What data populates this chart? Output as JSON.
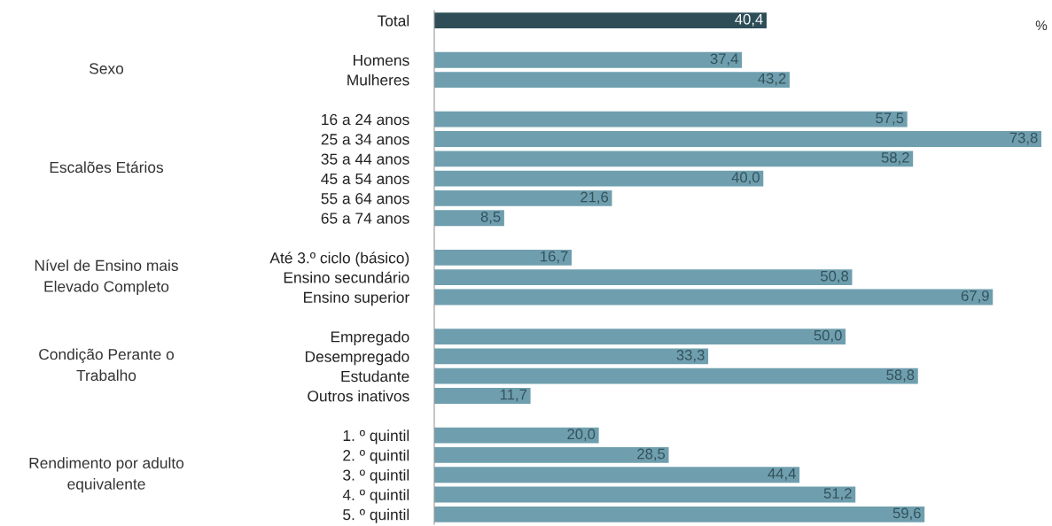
{
  "chart_data": {
    "type": "bar",
    "orientation": "horizontal",
    "value_labels": [
      "40,4",
      null,
      "37,4",
      "43,2",
      null,
      "57,5",
      "73,8",
      "58,2",
      "40,0",
      "21,6",
      "8,5",
      null,
      "16,7",
      "50,8",
      "67,9",
      null,
      "50,0",
      "33,3",
      "58,8",
      "11,7",
      null,
      "20,0",
      "28,5",
      "44,4",
      "51,2",
      "59,6"
    ],
    "grid": false,
    "legend": false,
    "categories": [
      "Total",
      null,
      "Homens",
      "Mulheres",
      null,
      "16 a 24 anos",
      "25 a 34 anos",
      "35 a 44 anos",
      "45 a 54 anos",
      "55 a 64 anos",
      "65 a 74 anos",
      null,
      "Até 3.º ciclo (básico)",
      "Ensino secundário",
      "Ensino superior",
      null,
      "Empregado",
      "Desempregado",
      "Estudante",
      "Outros inativos",
      null,
      "1. º quintil",
      "2. º quintil",
      "3. º quintil",
      "4. º quintil",
      "5. º quintil"
    ],
    "values": [
      40.4,
      null,
      37.4,
      43.2,
      null,
      57.5,
      73.8,
      58.2,
      40.0,
      21.6,
      8.5,
      null,
      16.7,
      50.8,
      67.9,
      null,
      50.0,
      33.3,
      58.8,
      11.7,
      null,
      20.0,
      28.5,
      44.4,
      51.2,
      59.6
    ],
    "colors": [
      "#2e4d57",
      null,
      "#6f9fae",
      "#6f9fae",
      null,
      "#6f9fae",
      "#6f9fae",
      "#6f9fae",
      "#6f9fae",
      "#6f9fae",
      "#6f9fae",
      null,
      "#6f9fae",
      "#6f9fae",
      "#6f9fae",
      null,
      "#6f9fae",
      "#6f9fae",
      "#6f9fae",
      "#6f9fae",
      null,
      "#6f9fae",
      "#6f9fae",
      "#6f9fae",
      "#6f9fae",
      "#6f9fae"
    ],
    "annotations": [
      "%",
      "Sexo",
      "Escalões Etários",
      "Nível de Ensino mais\nElevado Completo",
      "Condição Perante o\nTrabalho",
      "Rendimento por adulto\nequivalente"
    ]
  }
}
